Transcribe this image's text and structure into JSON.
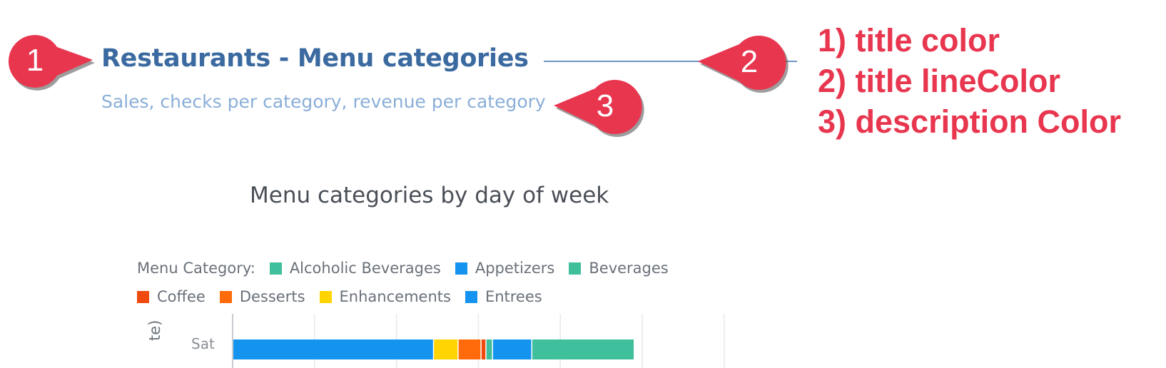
{
  "header": {
    "title": "Restaurants - Menu categories",
    "description": "Sales, checks per category, revenue per category"
  },
  "markers": [
    {
      "number": "1",
      "points_to": "title"
    },
    {
      "number": "2",
      "points_to": "title-line"
    },
    {
      "number": "3",
      "points_to": "description"
    }
  ],
  "annotations": [
    "1) title color",
    "2) title lineColor",
    "3) description Color"
  ],
  "colors": {
    "title": "#3b6aa0",
    "title_line": "#6d95c6",
    "description": "#8aaed8",
    "annotation": "#e8364f",
    "marker": "#e8364f"
  },
  "chart": {
    "title": "Menu categories by day of week",
    "legend_label": "Menu Category:",
    "axis_title_fragment": "te)",
    "legend": [
      {
        "name": "Alcoholic Beverages",
        "color": "#3fbf9b"
      },
      {
        "name": "Appetizers",
        "color": "#1494ee"
      },
      {
        "name": "Beverages",
        "color": "#3fbf9b"
      },
      {
        "name": "Coffee",
        "color": "#f04a0e"
      },
      {
        "name": "Desserts",
        "color": "#ff6a0a"
      },
      {
        "name": "Enhancements",
        "color": "#ffd400"
      },
      {
        "name": "Entrees",
        "color": "#1494ee"
      }
    ]
  },
  "chart_data": {
    "type": "bar",
    "orientation": "horizontal",
    "stacked": true,
    "title": "Menu categories by day of week",
    "categories": [
      "Sat"
    ],
    "grid": true,
    "series": [
      {
        "name": "Appetizers",
        "values": [
          24.5
        ]
      },
      {
        "name": "Enhancements",
        "values": [
          3.0
        ]
      },
      {
        "name": "Desserts",
        "values": [
          2.8
        ]
      },
      {
        "name": "Coffee",
        "values": [
          0.6
        ]
      },
      {
        "name": "Beverages",
        "values": [
          0.8
        ]
      },
      {
        "name": "Entrees",
        "values": [
          4.8
        ]
      },
      {
        "name": "Alcoholic Beverages",
        "values": [
          12.5
        ]
      }
    ],
    "xlim": [
      0,
      60
    ]
  }
}
